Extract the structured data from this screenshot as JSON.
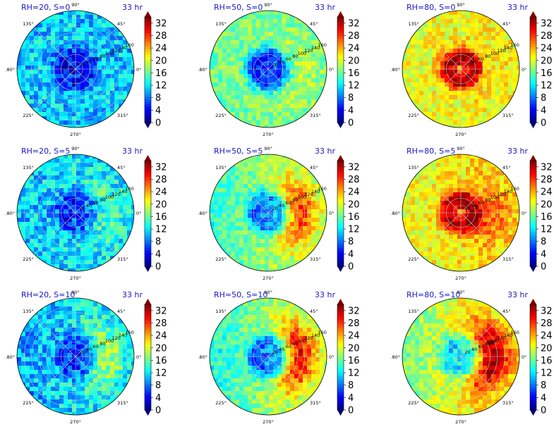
{
  "chart_data": {
    "type": "heatmap",
    "projection": "polar",
    "grid": true,
    "colormap": "jet",
    "colorbar": {
      "ticks": [
        0,
        4,
        8,
        12,
        16,
        20,
        24,
        28,
        32
      ],
      "range": [
        0,
        34
      ],
      "extend": "both"
    },
    "angular_ticks": [
      "0°",
      "45°",
      "90°",
      "135°",
      "180°",
      "225°",
      "270°",
      "315°"
    ],
    "radial_ticks": [
      "20",
      "40",
      "60",
      "80",
      "100",
      "120",
      "140",
      "160"
    ],
    "time_label": "33 hr",
    "panels": [
      {
        "title": "RH=20, S=0",
        "time": "33 hr",
        "core_value": 4,
        "ambient_value": 11,
        "noise": 4,
        "asym_east": 0
      },
      {
        "title": "RH=50, S=0",
        "time": "33 hr",
        "core_value": 5,
        "ambient_value": 17,
        "noise": 3,
        "asym_east": 2
      },
      {
        "title": "RH=80, S=0",
        "time": "33 hr",
        "core_value": 33,
        "ambient_value": 21,
        "noise": 3,
        "asym_east": 1
      },
      {
        "title": "RH=20, S=5",
        "time": "33 hr",
        "core_value": 6,
        "ambient_value": 12,
        "noise": 4,
        "asym_east": 3
      },
      {
        "title": "RH=50, S=5",
        "time": "33 hr",
        "core_value": 8,
        "ambient_value": 18,
        "noise": 3,
        "asym_east": 10
      },
      {
        "title": "RH=80, S=5",
        "time": "33 hr",
        "core_value": 33,
        "ambient_value": 22,
        "noise": 3,
        "asym_east": 4
      },
      {
        "title": "RH=20, S=10",
        "time": "33 hr",
        "core_value": 6,
        "ambient_value": 12,
        "noise": 4,
        "asym_east": 6
      },
      {
        "title": "RH=50, S=10",
        "time": "33 hr",
        "core_value": 8,
        "ambient_value": 18,
        "noise": 3,
        "asym_east": 12
      },
      {
        "title": "RH=80, S=10",
        "time": "33 hr",
        "core_value": 12,
        "ambient_value": 21,
        "noise": 3,
        "asym_east": 12
      }
    ]
  }
}
